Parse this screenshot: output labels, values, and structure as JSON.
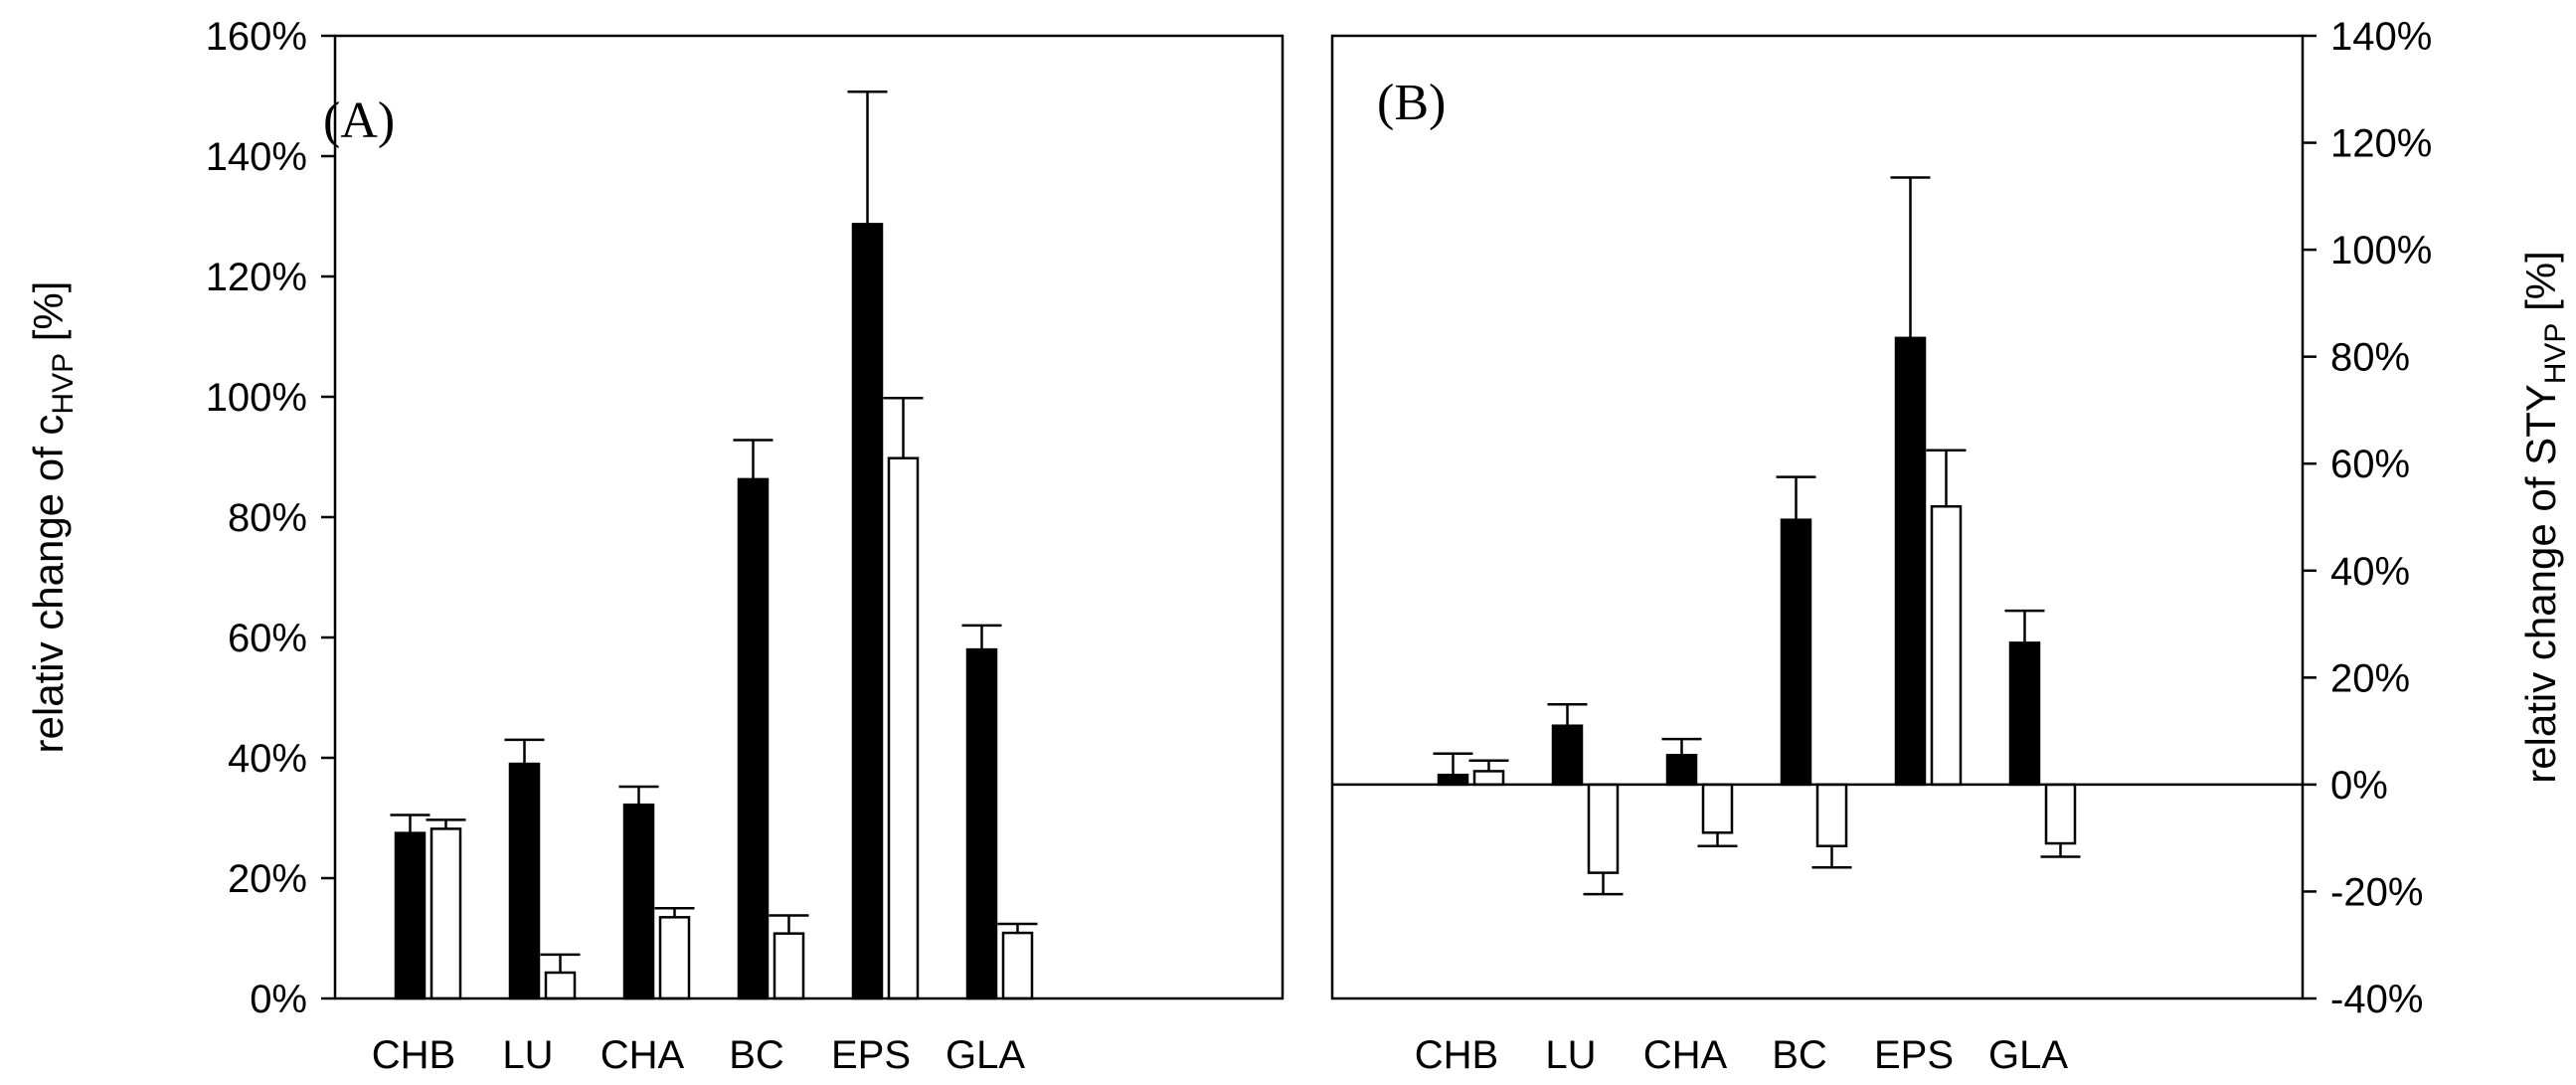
{
  "chart_data": [
    {
      "id": "A",
      "type": "bar",
      "panel_label": "(A)",
      "categories": [
        "CHB",
        "LU",
        "CHA",
        "BC",
        "EPS",
        "GLA"
      ],
      "ylabel_main": "relativ change of c",
      "ylabel_sub": "HVP",
      "ylabel_tail": " [%]",
      "ylim": [
        0,
        160
      ],
      "yticks": [
        0,
        20,
        40,
        60,
        80,
        100,
        120,
        140,
        160
      ],
      "ytick_labels": [
        "0%",
        "20%",
        "40%",
        "60%",
        "80%",
        "100%",
        "120%",
        "140%",
        "160%"
      ],
      "axis_side": "left",
      "series": [
        {
          "name": "filled",
          "color": "#000000",
          "values": [
            27.5,
            39,
            32.2,
            86.3,
            128.7,
            58
          ],
          "errors": [
            3,
            4,
            3,
            6.5,
            22,
            4
          ]
        },
        {
          "name": "open",
          "color": "#ffffff",
          "values": [
            28.2,
            4.3,
            13.5,
            10.8,
            89.8,
            10.9
          ],
          "errors": [
            1.5,
            3,
            1.5,
            3,
            10,
            1.5
          ]
        }
      ]
    },
    {
      "id": "B",
      "type": "bar",
      "panel_label": "(B)",
      "categories": [
        "CHB",
        "LU",
        "CHA",
        "BC",
        "EPS",
        "GLA"
      ],
      "ylabel_main": "relativ change of STY",
      "ylabel_sub": "HVP",
      "ylabel_tail": " [%]",
      "ylim": [
        -40,
        140
      ],
      "yticks": [
        -40,
        -20,
        0,
        20,
        40,
        60,
        80,
        100,
        120,
        140
      ],
      "ytick_labels": [
        "-40%",
        "-20%",
        "0%",
        "20%",
        "40%",
        "60%",
        "80%",
        "100%",
        "120%",
        "140%"
      ],
      "axis_side": "right",
      "zero_line": true,
      "series": [
        {
          "name": "filled",
          "color": "#000000",
          "values": [
            1.8,
            11,
            5.5,
            49.5,
            83.5,
            26.5
          ],
          "errors": [
            4,
            4,
            3,
            8,
            30,
            6
          ]
        },
        {
          "name": "open",
          "color": "#ffffff",
          "values": [
            2.5,
            -16.5,
            -9,
            -11.5,
            52,
            -11
          ],
          "errors": [
            2,
            4,
            2.5,
            4,
            10.5,
            2.5
          ]
        }
      ]
    }
  ]
}
